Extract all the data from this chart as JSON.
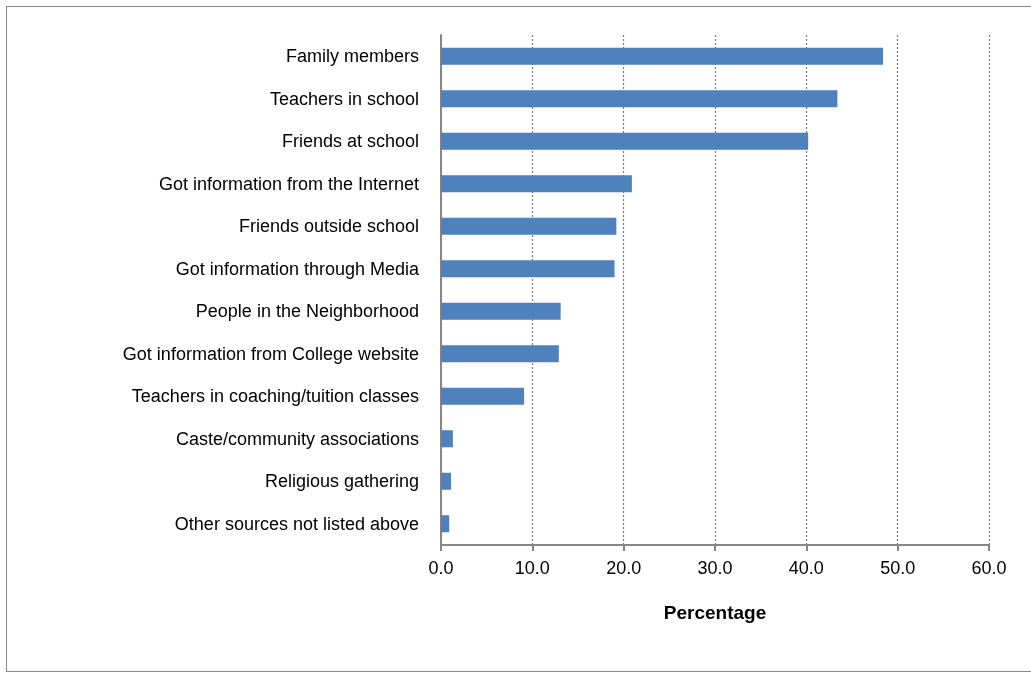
{
  "chart_data": {
    "type": "bar",
    "orientation": "horizontal",
    "xlabel": "Percentage",
    "categories": [
      "Family members",
      "Teachers in school",
      "Friends at school",
      "Got information from the Internet",
      "Friends outside school",
      "Got information through Media",
      "People in the Neighborhood",
      "Got information from College website",
      "Teachers in coaching/tuition classes",
      "Caste/community associations",
      "Religious gathering",
      "Other sources not listed above"
    ],
    "values": [
      48.4,
      43.4,
      40.2,
      20.9,
      19.2,
      19.0,
      13.1,
      12.9,
      9.1,
      1.3,
      1.1,
      0.9
    ],
    "color": "#4f81bd",
    "xlim": [
      0,
      60
    ],
    "xticks": [
      {
        "value": 0,
        "label": "0.0"
      },
      {
        "value": 10,
        "label": "10.0"
      },
      {
        "value": 20,
        "label": "20.0"
      },
      {
        "value": 30,
        "label": "30.0"
      },
      {
        "value": 40,
        "label": "40.0"
      },
      {
        "value": 50,
        "label": "50.0"
      },
      {
        "value": 60,
        "label": "60.0"
      }
    ],
    "grid": "x"
  }
}
